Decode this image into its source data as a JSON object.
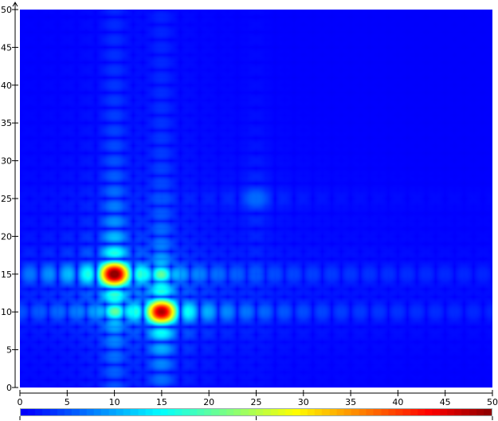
{
  "chart_data": {
    "type": "heatmap",
    "title": "",
    "xlabel": "",
    "ylabel": "",
    "xlim": [
      0,
      50
    ],
    "ylim": [
      0,
      50
    ],
    "xticks": [
      "0",
      "5",
      "10",
      "15",
      "20",
      "25",
      "30",
      "35",
      "40",
      "45",
      "50"
    ],
    "yticks": [
      "0",
      "5",
      "10",
      "15",
      "20",
      "25",
      "30",
      "35",
      "40",
      "45",
      "50"
    ],
    "grid": false,
    "colormap": "jet",
    "colorbar": {
      "orientation": "horizontal",
      "placement": "bottom",
      "range": [
        0,
        1
      ]
    },
    "peaks": [
      {
        "x": 10,
        "y": 15,
        "value": 1.0
      },
      {
        "x": 15,
        "y": 10,
        "value": 0.93
      },
      {
        "x": 25,
        "y": 25,
        "value": 0.12
      }
    ],
    "background_color": "#00008b"
  }
}
